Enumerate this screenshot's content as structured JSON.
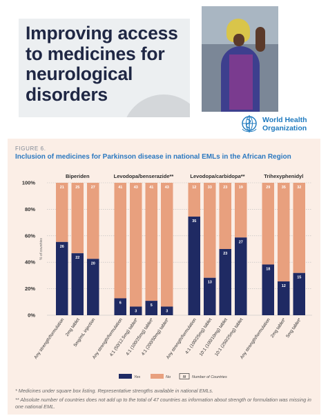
{
  "cover": {
    "title": "Improving access to medicines for neurological disorders",
    "who_name_line1": "World Health",
    "who_name_line2": "Organization"
  },
  "figure": {
    "label": "FIGURE 6.",
    "title": "Inclusion of medicines for Parkinson disease in national EMLs in the African Region",
    "footnotes": [
      "* Medicines under square box listing. Representative strengths available in national EMLs.",
      "** Absolute number of countries does not add up to the total of 47 countries as information about strength or formulation was missing in one national EML."
    ]
  },
  "chart_data": {
    "type": "bar",
    "stacked": true,
    "percent_stacked": true,
    "ylabel": "% of countries",
    "yticks": [
      "0%",
      "20%",
      "40%",
      "60%",
      "80%",
      "100%"
    ],
    "ylim": [
      0,
      100
    ],
    "grid": true,
    "legend": {
      "placement": "bottom",
      "entries": [
        {
          "label": "Yes",
          "color": "#1f2a63"
        },
        {
          "label": "No",
          "color": "#e8a07e"
        },
        {
          "label": "Number of Countries",
          "marker": "N"
        }
      ]
    },
    "groups": [
      {
        "name": "Biperiden",
        "bars": [
          {
            "category": "Any strength/formulation",
            "yes": 26,
            "no": 21
          },
          {
            "category": "2mg tablet",
            "yes": 22,
            "no": 25
          },
          {
            "category": "5mg/mL injection",
            "yes": 20,
            "no": 27
          }
        ]
      },
      {
        "name": "Levodopa/benserazide**",
        "bars": [
          {
            "category": "Any strength/formulation",
            "yes": 6,
            "no": 41
          },
          {
            "category": "4:1 (50/12.5mg) tablet*",
            "yes": 3,
            "no": 43
          },
          {
            "category": "4:1 (100/25mg) tablet*",
            "yes": 5,
            "no": 41
          },
          {
            "category": "4:1 (200/50mg) tablet*",
            "yes": 3,
            "no": 43
          }
        ]
      },
      {
        "name": "Levodopa/carbidopa**",
        "bars": [
          {
            "category": "Any strength/formulation",
            "yes": 35,
            "no": 12
          },
          {
            "category": "4:1 (100/25mg) tablet",
            "yes": 13,
            "no": 33
          },
          {
            "category": "10:1 (100/10mg) tablet",
            "yes": 23,
            "no": 23
          },
          {
            "category": "10:1 (250/25mg) tablet",
            "yes": 27,
            "no": 19
          }
        ]
      },
      {
        "name": "Trihexyphenidyl",
        "bars": [
          {
            "category": "Any strength/formulation",
            "yes": 18,
            "no": 29
          },
          {
            "category": "2mg tablet*",
            "yes": 12,
            "no": 35
          },
          {
            "category": "5mg tablet*",
            "yes": 15,
            "no": 32
          }
        ]
      }
    ]
  }
}
